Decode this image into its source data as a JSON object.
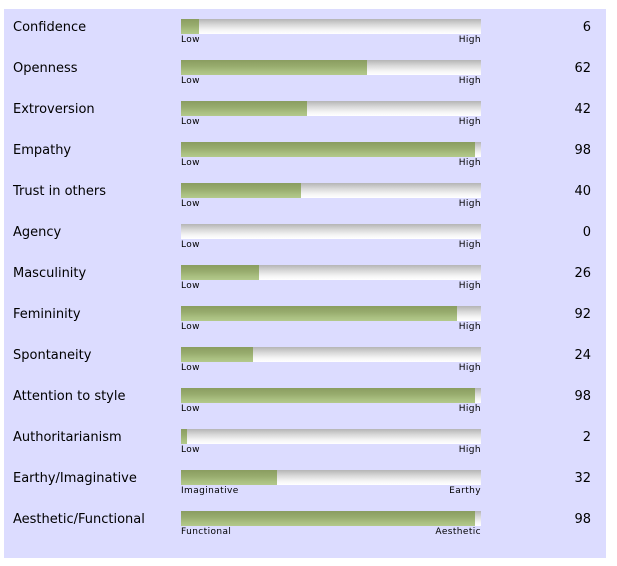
{
  "traits": [
    {
      "label": "Confidence",
      "low": "Low",
      "high": "High",
      "score": "6",
      "level": 6
    },
    {
      "label": "Openness",
      "low": "Low",
      "high": "High",
      "score": "62",
      "level": 62
    },
    {
      "label": "Extroversion",
      "low": "Low",
      "high": "High",
      "score": "42",
      "level": 42
    },
    {
      "label": "Empathy",
      "low": "Low",
      "high": "High",
      "score": "98",
      "level": 98
    },
    {
      "label": "Trust in others",
      "low": "Low",
      "high": "High",
      "score": "40",
      "level": 40
    },
    {
      "label": "Agency",
      "low": "Low",
      "high": "High",
      "score": "0",
      "level": 0
    },
    {
      "label": "Masculinity",
      "low": "Low",
      "high": "High",
      "score": "26",
      "level": 26
    },
    {
      "label": "Femininity",
      "low": "Low",
      "high": "High",
      "score": "92",
      "level": 92
    },
    {
      "label": "Spontaneity",
      "low": "Low",
      "high": "High",
      "score": "24",
      "level": 24
    },
    {
      "label": "Attention to style",
      "low": "Low",
      "high": "High",
      "score": "98",
      "level": 98
    },
    {
      "label": "Authoritarianism",
      "low": "Low",
      "high": "High",
      "score": "2",
      "level": 2
    },
    {
      "label": "Earthy/Imaginative",
      "low": "Imaginative",
      "high": "Earthy",
      "score": "32",
      "level": 32
    },
    {
      "label": "Aesthetic/Functional",
      "low": "Functional",
      "high": "Aesthetic",
      "score": "98",
      "level": 98
    }
  ],
  "colors": {
    "panel_background": "#dcdcff",
    "bar_fill": "#97ab6d",
    "bar_track": "#d6d6d6"
  }
}
